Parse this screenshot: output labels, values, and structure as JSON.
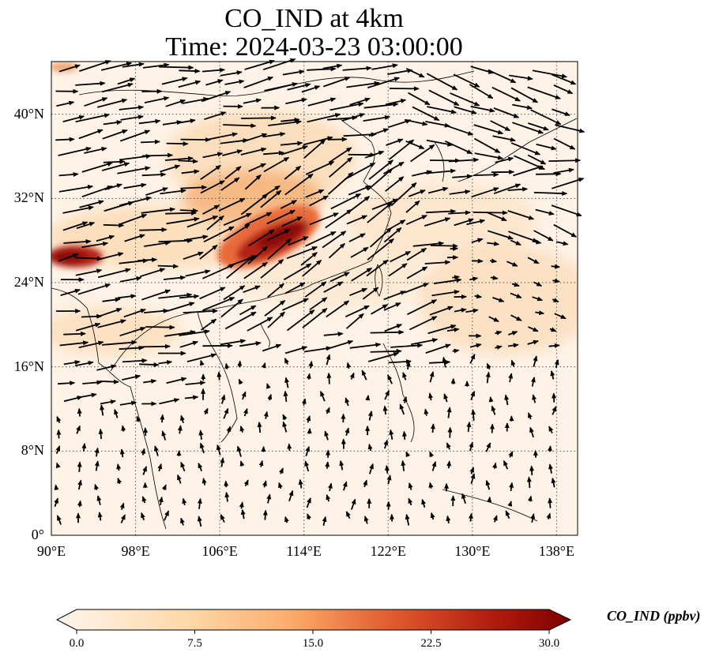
{
  "title": {
    "line1": "CO_IND at 4km",
    "line2": "Time: 2024-03-23 03:00:00"
  },
  "map": {
    "lon_range": [
      90,
      140
    ],
    "lat_range": [
      0,
      45
    ],
    "lat_ticks": [
      {
        "value": 0,
        "label": "0°"
      },
      {
        "value": 8,
        "label": "8°N"
      },
      {
        "value": 16,
        "label": "16°N"
      },
      {
        "value": 24,
        "label": "24°N"
      },
      {
        "value": 32,
        "label": "32°N"
      },
      {
        "value": 40,
        "label": "40°N"
      }
    ],
    "lon_ticks": [
      {
        "value": 90,
        "label": "90°E"
      },
      {
        "value": 98,
        "label": "98°E"
      },
      {
        "value": 106,
        "label": "106°E"
      },
      {
        "value": 114,
        "label": "114°E"
      },
      {
        "value": 122,
        "label": "122°E"
      },
      {
        "value": 130,
        "label": "130°E"
      },
      {
        "value": 138,
        "label": "138°E"
      }
    ],
    "gridlines": true,
    "colormap": [
      "#fff5eb",
      "#fdd9a9",
      "#fdad6c",
      "#e25b2e",
      "#b01c0e",
      "#7f0000"
    ],
    "wind_field": "westerly arrows over north, weaker southeasterly flow over south"
  },
  "colorbar": {
    "label": "CO_IND (ppbv)",
    "min": 0,
    "max": 30,
    "ticks": [
      "0.0",
      "7.5",
      "15.0",
      "22.5",
      "30.0"
    ],
    "extend": "both"
  }
}
